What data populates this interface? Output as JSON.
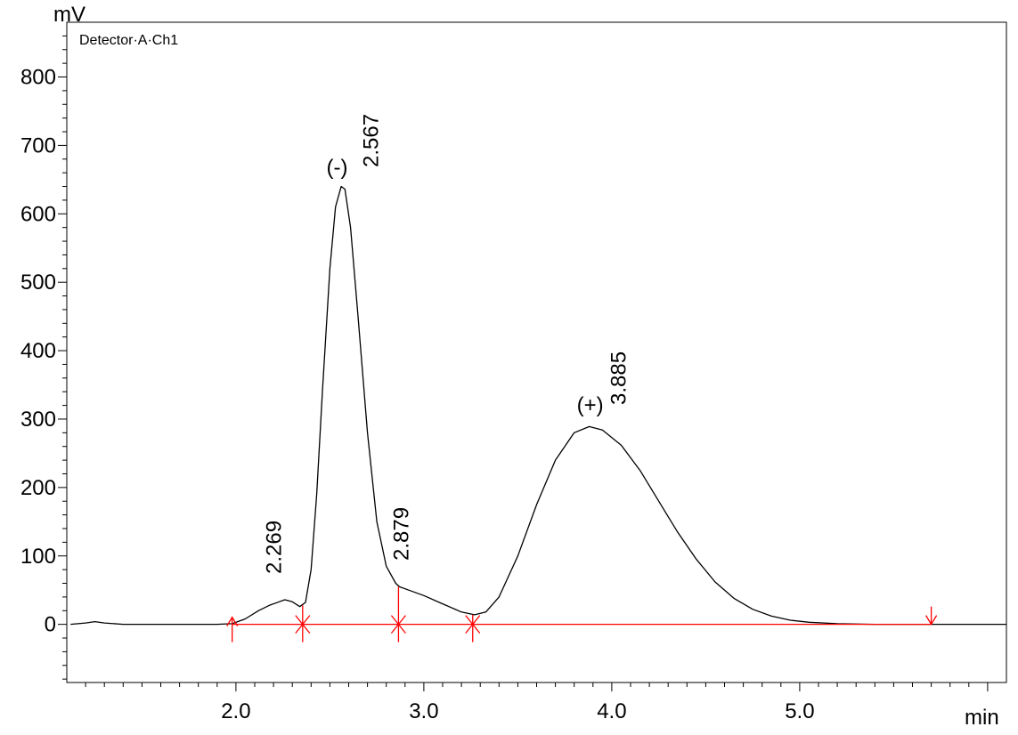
{
  "chart_data": {
    "type": "line",
    "y_unit": "mV",
    "x_unit": "min",
    "detector": "Detector·A·Ch1",
    "xlim": [
      1.1,
      6.1
    ],
    "ylim": [
      -85,
      880
    ],
    "x_ticks": [
      {
        "value": 2.0,
        "label": "2.0"
      },
      {
        "value": 3.0,
        "label": "3.0"
      },
      {
        "value": 4.0,
        "label": "4.0"
      },
      {
        "value": 5.0,
        "label": "5.0"
      }
    ],
    "y_ticks": [
      {
        "value": 0,
        "label": "0"
      },
      {
        "value": 100,
        "label": "100"
      },
      {
        "value": 200,
        "label": "200"
      },
      {
        "value": 300,
        "label": "300"
      },
      {
        "value": 400,
        "label": "400"
      },
      {
        "value": 500,
        "label": "500"
      },
      {
        "value": 600,
        "label": "600"
      },
      {
        "value": 700,
        "label": "700"
      },
      {
        "value": 800,
        "label": "800"
      }
    ],
    "series": [
      {
        "color": "#000000",
        "points": [
          [
            1.12,
            0
          ],
          [
            1.2,
            2
          ],
          [
            1.25,
            4
          ],
          [
            1.3,
            2
          ],
          [
            1.4,
            0
          ],
          [
            1.6,
            0
          ],
          [
            1.9,
            0
          ],
          [
            1.98,
            1
          ],
          [
            2.05,
            8
          ],
          [
            2.12,
            20
          ],
          [
            2.18,
            28
          ],
          [
            2.23,
            33
          ],
          [
            2.26,
            36
          ],
          [
            2.3,
            33
          ],
          [
            2.34,
            26
          ],
          [
            2.37,
            32
          ],
          [
            2.4,
            80
          ],
          [
            2.43,
            190
          ],
          [
            2.46,
            340
          ],
          [
            2.5,
            520
          ],
          [
            2.53,
            610
          ],
          [
            2.56,
            640
          ],
          [
            2.58,
            636
          ],
          [
            2.61,
            580
          ],
          [
            2.65,
            450
          ],
          [
            2.7,
            280
          ],
          [
            2.75,
            150
          ],
          [
            2.8,
            85
          ],
          [
            2.85,
            60
          ],
          [
            2.87,
            55
          ],
          [
            2.92,
            50
          ],
          [
            3.0,
            42
          ],
          [
            3.1,
            30
          ],
          [
            3.2,
            18
          ],
          [
            3.27,
            14
          ],
          [
            3.33,
            18
          ],
          [
            3.4,
            40
          ],
          [
            3.5,
            100
          ],
          [
            3.6,
            175
          ],
          [
            3.7,
            240
          ],
          [
            3.8,
            280
          ],
          [
            3.88,
            289
          ],
          [
            3.95,
            284
          ],
          [
            4.05,
            262
          ],
          [
            4.15,
            225
          ],
          [
            4.25,
            180
          ],
          [
            4.35,
            135
          ],
          [
            4.45,
            95
          ],
          [
            4.55,
            62
          ],
          [
            4.65,
            38
          ],
          [
            4.75,
            22
          ],
          [
            4.85,
            12
          ],
          [
            4.95,
            6
          ],
          [
            5.05,
            3
          ],
          [
            5.2,
            1
          ],
          [
            5.4,
            0
          ],
          [
            5.6,
            0
          ],
          [
            5.8,
            0
          ],
          [
            6.1,
            0
          ]
        ]
      }
    ],
    "baseline": {
      "color": "#ff0000",
      "x_start": 1.98,
      "x_end": 5.7
    },
    "boundaries": [
      {
        "x": 1.98,
        "y": 0,
        "type": "start"
      },
      {
        "x": 2.355,
        "y": 28,
        "type": "valley"
      },
      {
        "x": 2.865,
        "y": 55,
        "type": "valley"
      },
      {
        "x": 3.26,
        "y": 14,
        "type": "valley"
      },
      {
        "x": 5.7,
        "y": 0,
        "type": "end"
      }
    ],
    "peaks": [
      {
        "rt": 2.269,
        "label": "2.269",
        "height": 36,
        "enantiomer": ""
      },
      {
        "rt": 2.567,
        "label": "2.567",
        "height": 640,
        "enantiomer": "(-)"
      },
      {
        "rt": 2.879,
        "label": "2.879",
        "height": 55,
        "enantiomer": ""
      },
      {
        "rt": 3.885,
        "label": "3.885",
        "height": 289,
        "enantiomer": "(+)"
      }
    ]
  }
}
